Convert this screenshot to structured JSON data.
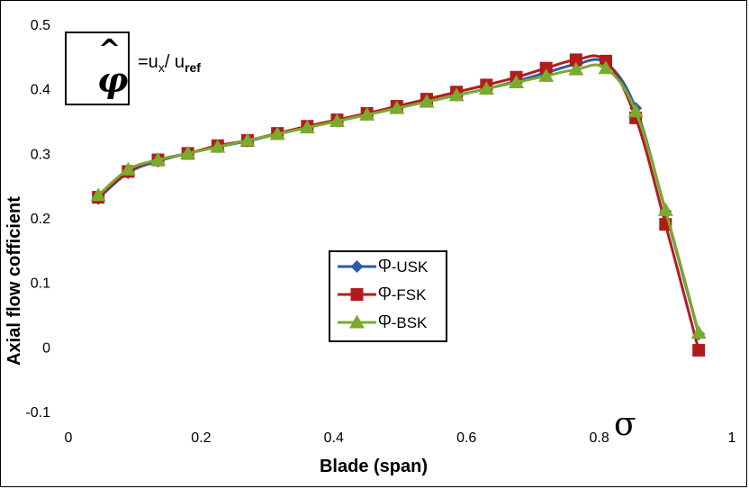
{
  "chart_data": {
    "type": "line",
    "xlabel": "Blade (span)",
    "ylabel": "Axial flow cofficient",
    "xlim": [
      0,
      1
    ],
    "ylim": [
      -0.1,
      0.5
    ],
    "x_ticks": [
      "0",
      "0.2",
      "0.4",
      "0.6",
      "0.8",
      "1"
    ],
    "y_ticks": [
      "-0.1",
      "0",
      "0.1",
      "0.2",
      "0.3",
      "0.4",
      "0.5"
    ],
    "grid": false,
    "legend_position": "center",
    "series": [
      {
        "name": "Ⴔ-USK",
        "marker": "diamond",
        "color": "#2A5CA8",
        "x": [
          0.045,
          0.09,
          0.135,
          0.18,
          0.225,
          0.27,
          0.315,
          0.36,
          0.405,
          0.45,
          0.495,
          0.54,
          0.585,
          0.63,
          0.675,
          0.72,
          0.765,
          0.81,
          0.855,
          0.9,
          0.95
        ],
        "y": [
          0.23,
          0.27,
          0.288,
          0.3,
          0.31,
          0.319,
          0.33,
          0.34,
          0.35,
          0.36,
          0.37,
          0.38,
          0.39,
          0.4,
          0.412,
          0.425,
          0.438,
          0.44,
          0.37,
          0.21,
          0.02
        ]
      },
      {
        "name": "Ⴔ-FSK",
        "marker": "square",
        "color": "#B31B1B",
        "x": [
          0.045,
          0.09,
          0.135,
          0.18,
          0.225,
          0.27,
          0.315,
          0.36,
          0.405,
          0.45,
          0.495,
          0.54,
          0.585,
          0.63,
          0.675,
          0.72,
          0.765,
          0.81,
          0.855,
          0.9,
          0.95
        ],
        "y": [
          0.232,
          0.272,
          0.29,
          0.3,
          0.312,
          0.32,
          0.331,
          0.342,
          0.352,
          0.362,
          0.373,
          0.384,
          0.395,
          0.406,
          0.418,
          0.432,
          0.445,
          0.443,
          0.355,
          0.19,
          -0.005
        ]
      },
      {
        "name": "Ⴔ-BSK",
        "marker": "triangle",
        "color": "#7AAA2E",
        "x": [
          0.045,
          0.09,
          0.135,
          0.18,
          0.225,
          0.27,
          0.315,
          0.36,
          0.405,
          0.45,
          0.495,
          0.54,
          0.585,
          0.63,
          0.675,
          0.72,
          0.765,
          0.81,
          0.855,
          0.9,
          0.95
        ],
        "y": [
          0.235,
          0.275,
          0.29,
          0.3,
          0.31,
          0.32,
          0.33,
          0.34,
          0.35,
          0.36,
          0.37,
          0.38,
          0.39,
          0.4,
          0.41,
          0.42,
          0.43,
          0.432,
          0.365,
          0.212,
          0.022
        ]
      }
    ]
  },
  "annotations": {
    "phi_hat": "^",
    "phi_symbol": "φ",
    "formula_lhs": "=u",
    "formula_sub1": "x",
    "formula_mid": "/ u",
    "formula_sub2": "ref",
    "sigma": "σ"
  }
}
